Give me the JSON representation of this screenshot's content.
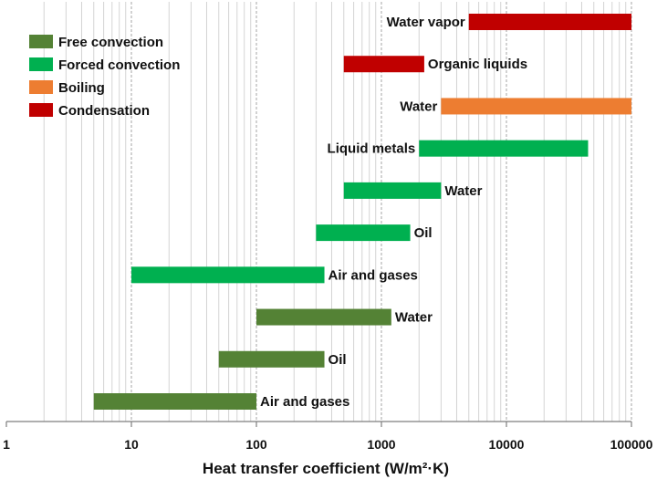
{
  "chart_data": {
    "type": "bar",
    "orientation": "horizontal-range",
    "title": "",
    "xlabel": "Heat transfer coefficient (W/m²·K)",
    "ylabel": "",
    "xscale": "log",
    "xlim": [
      1,
      100000
    ],
    "xticks": [
      "1",
      "10",
      "100",
      "1000",
      "10000",
      "100000"
    ],
    "grid": "vertical major and minor lines",
    "legend_position": "top-left",
    "legend": [
      {
        "name": "Free convection",
        "color": "#548235"
      },
      {
        "name": "Forced convection",
        "color": "#00b050"
      },
      {
        "name": "Boiling",
        "color": "#ed7d31"
      },
      {
        "name": "Condensation",
        "color": "#c00000"
      }
    ],
    "bars": [
      {
        "label": "Water vapor",
        "category": "Condensation",
        "low": 5000,
        "high": 100000,
        "label_side": "left"
      },
      {
        "label": "Organic liquids",
        "category": "Condensation",
        "low": 500,
        "high": 2200,
        "label_side": "right"
      },
      {
        "label": "Water",
        "category": "Boiling",
        "low": 3000,
        "high": 100000,
        "label_side": "left"
      },
      {
        "label": "Liquid metals",
        "category": "Forced convection",
        "low": 2000,
        "high": 45000,
        "label_side": "left"
      },
      {
        "label": "Water",
        "category": "Forced convection",
        "low": 500,
        "high": 3000,
        "label_side": "right"
      },
      {
        "label": "Oil",
        "category": "Forced convection",
        "low": 300,
        "high": 1700,
        "label_side": "right"
      },
      {
        "label": "Air and gases",
        "category": "Forced convection",
        "low": 10,
        "high": 350,
        "label_side": "right"
      },
      {
        "label": "Water",
        "category": "Free convection",
        "low": 100,
        "high": 1200,
        "label_side": "right"
      },
      {
        "label": "Oil",
        "category": "Free convection",
        "low": 50,
        "high": 350,
        "label_side": "right"
      },
      {
        "label": "Air and gases",
        "category": "Free convection",
        "low": 5,
        "high": 100,
        "label_side": "right"
      }
    ]
  }
}
